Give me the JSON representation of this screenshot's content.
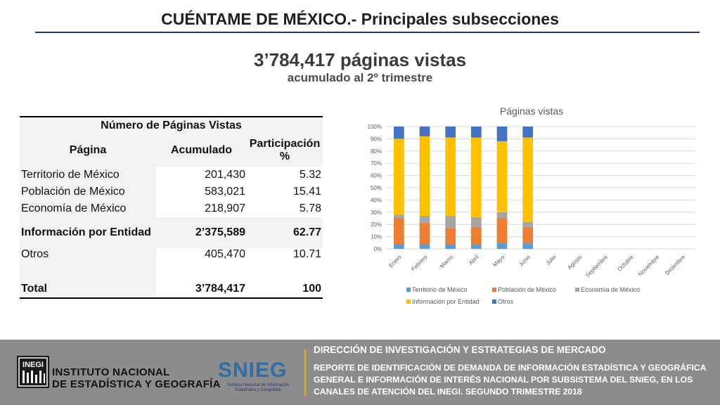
{
  "title": "CUÉNTAME DE MÉXICO.- Principales subsecciones",
  "headline": "3’784,417 páginas vistas",
  "subhead": "acumulado al 2º trimestre",
  "table": {
    "caption": "Número de Páginas Vistas",
    "headers": [
      "Página",
      "Acumulado",
      "Participación %"
    ],
    "rows": [
      {
        "pagina": "Territorio de México",
        "acumulado": "201,430",
        "participacion": "5.32"
      },
      {
        "pagina": "Población de México",
        "acumulado": "583,021",
        "participacion": "15.41"
      },
      {
        "pagina": "Economía de México",
        "acumulado": "218,907",
        "participacion": "5.78"
      },
      {
        "pagina": "Información por Entidad",
        "acumulado": "2’375,589",
        "participacion": "62.77"
      },
      {
        "pagina": "Otros",
        "acumulado": "405,470",
        "participacion": "10.71"
      }
    ],
    "total": {
      "pagina": "Total",
      "acumulado": "3’784,417",
      "participacion": "100"
    }
  },
  "chart_data": {
    "type": "bar",
    "stacked": true,
    "title": "Páginas vistas",
    "categories": [
      "Enero",
      "Febrero",
      "Marzo",
      "Abril",
      "Mayo",
      "Junio",
      "Julio",
      "Agosto",
      "Septiembre",
      "Octubre",
      "Noviembre",
      "Diciembre"
    ],
    "yticks": [
      "0%",
      "10%",
      "20%",
      "30%",
      "40%",
      "50%",
      "60%",
      "70%",
      "80%",
      "90%",
      "100%"
    ],
    "ylim": [
      0,
      100
    ],
    "grid": true,
    "legend_position": "bottom",
    "series": [
      {
        "name": "Territorio de México",
        "color": "#5b9bd5",
        "values": [
          4,
          4,
          4,
          4,
          5,
          5,
          null,
          null,
          null,
          null,
          null,
          null
        ]
      },
      {
        "name": "Población de México",
        "color": "#ed7d31",
        "values": [
          21,
          17,
          13,
          14,
          20,
          13,
          null,
          null,
          null,
          null,
          null,
          null
        ]
      },
      {
        "name": "Economía de México",
        "color": "#a5a5a5",
        "values": [
          3,
          6,
          10,
          8,
          5,
          4,
          null,
          null,
          null,
          null,
          null,
          null
        ]
      },
      {
        "name": "Información por Entidad",
        "color": "#ffc000",
        "values": [
          62,
          65,
          64,
          65,
          58,
          69,
          null,
          null,
          null,
          null,
          null,
          null
        ]
      },
      {
        "name": "Otros",
        "color": "#4472c4",
        "values": [
          10,
          8,
          9,
          9,
          12,
          9,
          null,
          null,
          null,
          null,
          null,
          null
        ]
      }
    ]
  },
  "footer": {
    "logo_abbr": "INEGI",
    "institute_line1": "INSTITUTO NACIONAL",
    "institute_line2": "DE ESTADÍSTICA Y GEOGRAFÍA",
    "snieg": "SNIEG",
    "snieg_sub": "Sistema Nacional de Información Estadística y Geográfica",
    "direction": "DIRECCIÓN DE INVESTIGACIÓN Y ESTRATEGIAS DE MERCADO",
    "report": "REPORTE DE IDENTIFICACIÓN DE DEMANDA DE INFORMACIÓN ESTADÍSTICA Y GEOGRÁFICA GENERAL E INFORMACIÓN DE INTERÉS NACIONAL POR SUBSISTEMA DEL SNIEG, EN LOS CANALES DE ATENCIÓN DEL INEGI. SEGUNDO TRIMESTRE 2018"
  }
}
